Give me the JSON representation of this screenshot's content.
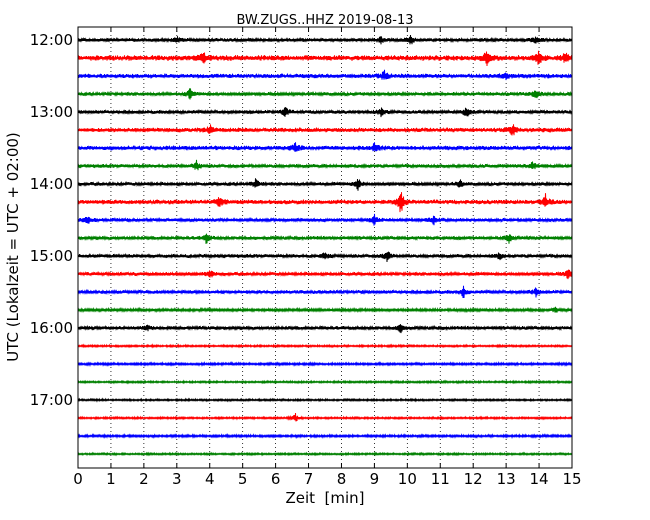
{
  "chart_data": {
    "type": "line",
    "title": "BW.ZUGS..HHZ 2019-08-13",
    "xlabel": "Zeit  [min]",
    "ylabel": "UTC (Lokalzeit = UTC + 02:00)",
    "xlim": [
      0,
      15
    ],
    "xticks": [
      "0",
      "1",
      "2",
      "3",
      "4",
      "5",
      "6",
      "7",
      "8",
      "9",
      "10",
      "11",
      "12",
      "13",
      "14",
      "15"
    ],
    "yticks": [
      "12:00",
      "13:00",
      "14:00",
      "15:00",
      "16:00",
      "17:00"
    ],
    "grid": "vertical-dotted",
    "trace_colors": [
      "#000000",
      "#ff0000",
      "#0000ff",
      "#008000"
    ],
    "traces": [
      {
        "start": "12:00",
        "x_end": 15,
        "amplitude": 2,
        "events": [
          {
            "x": 10.1,
            "a": 5
          },
          {
            "x": 3.0,
            "a": 3
          },
          {
            "x": 9.2,
            "a": 3
          },
          {
            "x": 13.9,
            "a": 3
          }
        ]
      },
      {
        "start": "12:15",
        "x_end": 15,
        "amplitude": 3,
        "events": [
          {
            "x": 3.8,
            "a": 7
          },
          {
            "x": 12.4,
            "a": 8
          },
          {
            "x": 14.0,
            "a": 7
          },
          {
            "x": 14.8,
            "a": 5
          }
        ]
      },
      {
        "start": "12:30",
        "x_end": 15,
        "amplitude": 2.5,
        "events": [
          {
            "x": 9.3,
            "a": 5
          },
          {
            "x": 13.0,
            "a": 3
          }
        ]
      },
      {
        "start": "12:45",
        "x_end": 15,
        "amplitude": 2,
        "events": [
          {
            "x": 3.4,
            "a": 5
          },
          {
            "x": 13.9,
            "a": 5
          }
        ]
      },
      {
        "start": "13:00",
        "x_end": 15,
        "amplitude": 2,
        "events": [
          {
            "x": 6.3,
            "a": 5
          },
          {
            "x": 9.2,
            "a": 4
          },
          {
            "x": 11.8,
            "a": 6
          }
        ]
      },
      {
        "start": "13:15",
        "x_end": 15,
        "amplitude": 2.5,
        "events": [
          {
            "x": 4.0,
            "a": 5
          },
          {
            "x": 13.2,
            "a": 6
          }
        ]
      },
      {
        "start": "13:30",
        "x_end": 15,
        "amplitude": 2.5,
        "events": [
          {
            "x": 6.6,
            "a": 4
          },
          {
            "x": 9.0,
            "a": 4
          }
        ]
      },
      {
        "start": "13:45",
        "x_end": 15,
        "amplitude": 2,
        "events": [
          {
            "x": 3.6,
            "a": 5
          },
          {
            "x": 13.8,
            "a": 5
          }
        ]
      },
      {
        "start": "14:00",
        "x_end": 15,
        "amplitude": 2,
        "events": [
          {
            "x": 5.4,
            "a": 5
          },
          {
            "x": 8.5,
            "a": 6
          },
          {
            "x": 11.6,
            "a": 4
          }
        ]
      },
      {
        "start": "14:15",
        "x_end": 15,
        "amplitude": 2.5,
        "events": [
          {
            "x": 9.8,
            "a": 14
          },
          {
            "x": 4.3,
            "a": 5
          },
          {
            "x": 14.2,
            "a": 7
          }
        ]
      },
      {
        "start": "14:30",
        "x_end": 15,
        "amplitude": 2,
        "events": [
          {
            "x": 0.3,
            "a": 4
          },
          {
            "x": 9.0,
            "a": 5
          },
          {
            "x": 10.8,
            "a": 4
          }
        ]
      },
      {
        "start": "14:45",
        "x_end": 15,
        "amplitude": 2,
        "events": [
          {
            "x": 3.9,
            "a": 5
          },
          {
            "x": 13.1,
            "a": 5
          }
        ]
      },
      {
        "start": "15:00",
        "x_end": 15,
        "amplitude": 2,
        "events": [
          {
            "x": 9.4,
            "a": 6
          },
          {
            "x": 7.5,
            "a": 3
          },
          {
            "x": 12.8,
            "a": 3
          }
        ]
      },
      {
        "start": "15:15",
        "x_end": 15,
        "amplitude": 2,
        "events": [
          {
            "x": 4.0,
            "a": 5
          },
          {
            "x": 14.9,
            "a": 6
          }
        ]
      },
      {
        "start": "15:30",
        "x_end": 15,
        "amplitude": 2,
        "events": [
          {
            "x": 11.7,
            "a": 6
          },
          {
            "x": 13.9,
            "a": 4
          }
        ]
      },
      {
        "start": "15:45",
        "x_end": 15,
        "amplitude": 1.5,
        "events": [
          {
            "x": 14.5,
            "a": 3
          }
        ]
      },
      {
        "start": "16:00",
        "x_end": 15,
        "amplitude": 2,
        "events": [
          {
            "x": 9.8,
            "a": 4
          },
          {
            "x": 2.1,
            "a": 2
          }
        ]
      },
      {
        "start": "16:15",
        "x_end": 15,
        "amplitude": 1,
        "events": []
      },
      {
        "start": "16:30",
        "x_end": 15,
        "amplitude": 1.2,
        "events": []
      },
      {
        "start": "16:45",
        "x_end": 15,
        "amplitude": 1,
        "events": []
      },
      {
        "start": "17:00",
        "x_end": 15,
        "amplitude": 1,
        "events": []
      },
      {
        "start": "17:15",
        "x_end": 15,
        "amplitude": 1,
        "events": [
          {
            "x": 6.6,
            "a": 5
          }
        ]
      },
      {
        "start": "17:30",
        "x_end": 15,
        "amplitude": 1.2,
        "events": []
      },
      {
        "start": "17:45",
        "x_end": 15,
        "amplitude": 1,
        "events": []
      }
    ]
  }
}
